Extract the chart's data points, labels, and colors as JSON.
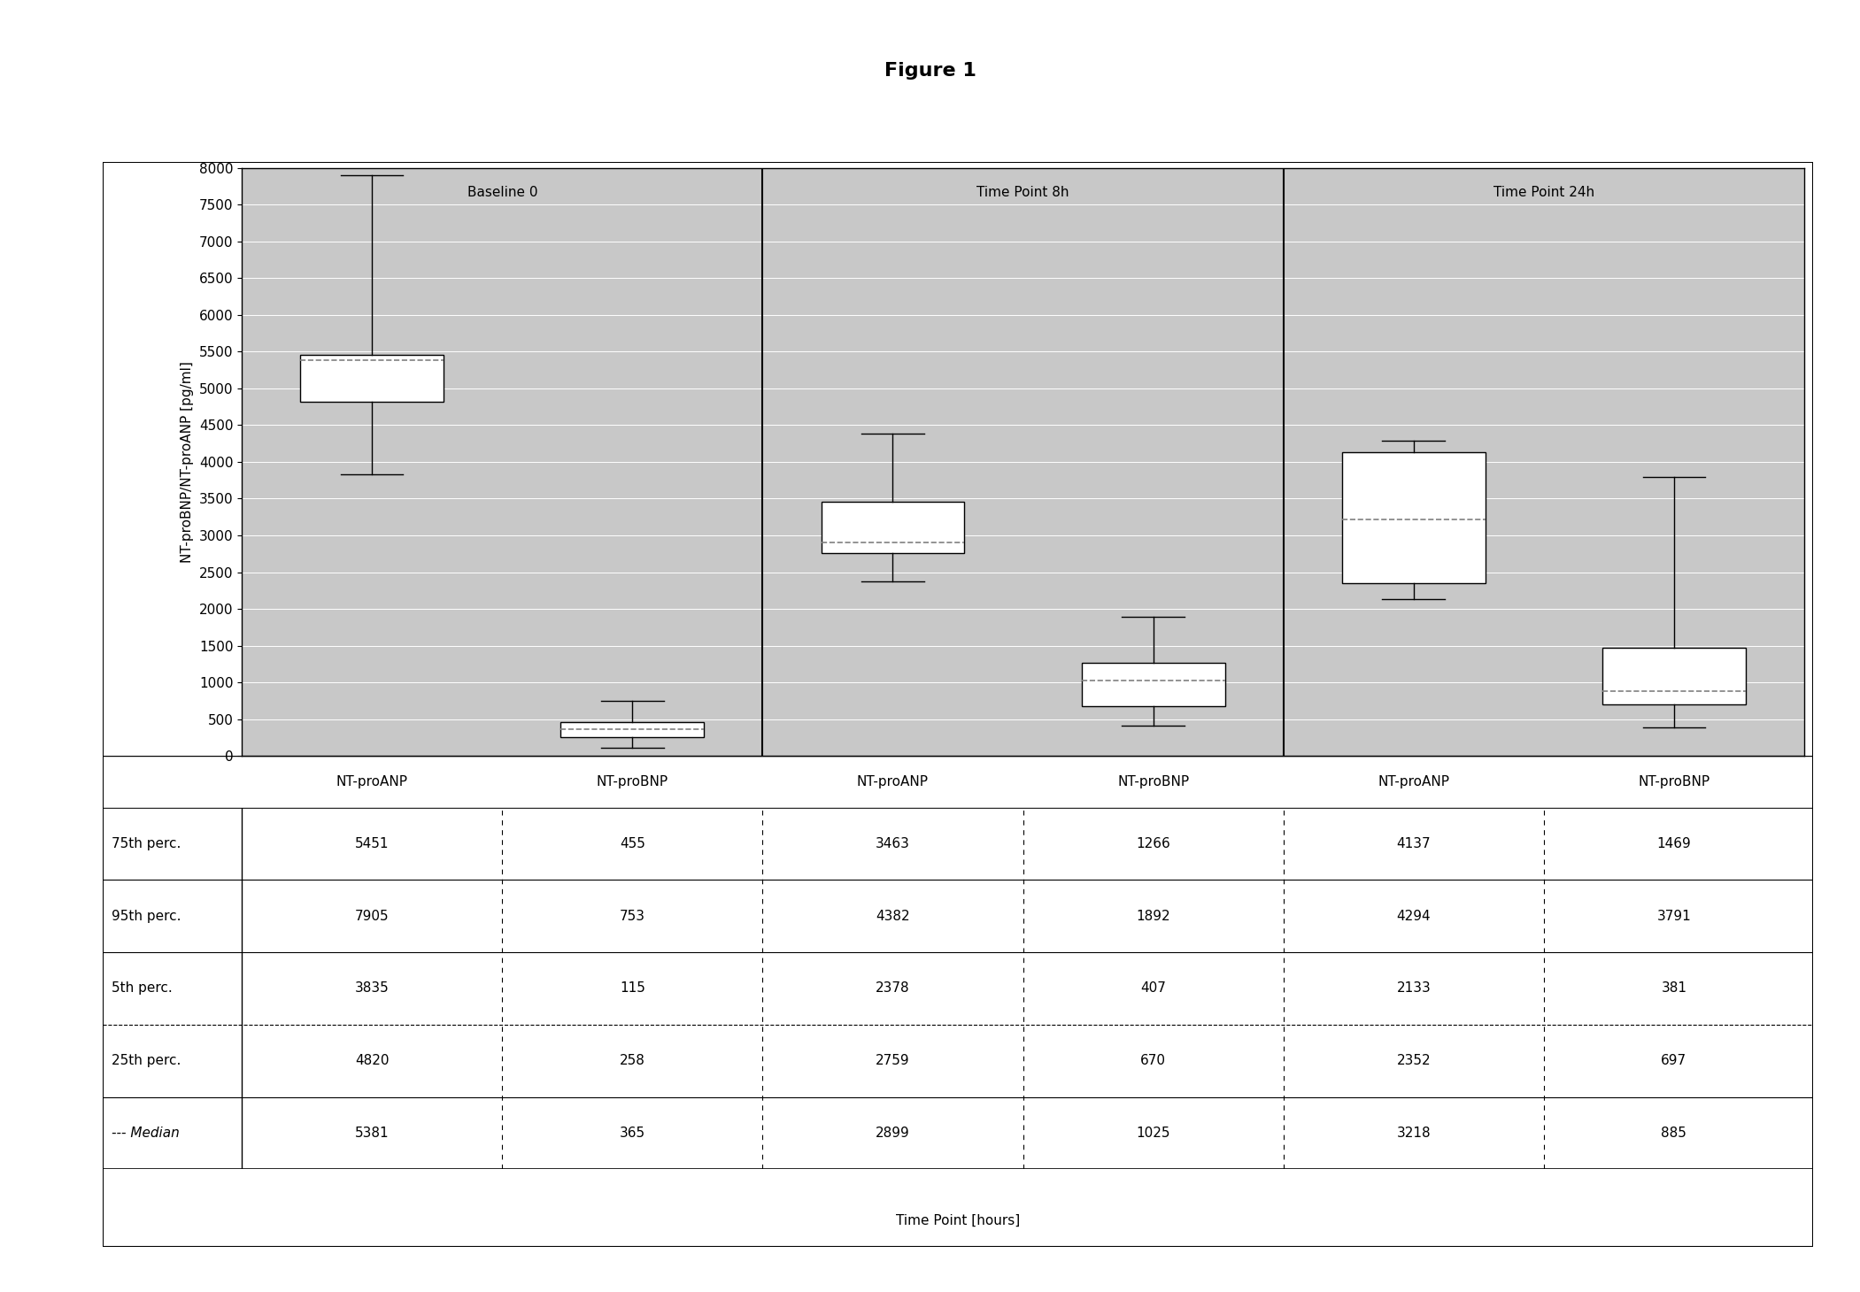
{
  "title": "Figure 1",
  "ylabel": "NT-proBNP/NT-proANP [pg/ml]",
  "xlabel": "Time Point [hours]",
  "ylim": [
    0,
    8000
  ],
  "yticks": [
    0,
    500,
    1000,
    1500,
    2000,
    2500,
    3000,
    3500,
    4000,
    4500,
    5000,
    5500,
    6000,
    6500,
    7000,
    7500,
    8000
  ],
  "group_labels": [
    "Baseline 0",
    "Time Point 8h",
    "Time Point 24h"
  ],
  "box_labels": [
    "NT-proANP",
    "NT-proBNP",
    "NT-proANP",
    "NT-proBNP",
    "NT-proANP",
    "NT-proBNP"
  ],
  "boxes": [
    {
      "q1": 4820,
      "median": 5381,
      "q3": 5451,
      "whisker_low": 3835,
      "whisker_high": 7905
    },
    {
      "q1": 258,
      "median": 365,
      "q3": 455,
      "whisker_low": 115,
      "whisker_high": 753
    },
    {
      "q1": 2759,
      "median": 2899,
      "q3": 3463,
      "whisker_low": 2378,
      "whisker_high": 4382
    },
    {
      "q1": 670,
      "median": 1025,
      "q3": 1266,
      "whisker_low": 407,
      "whisker_high": 1892
    },
    {
      "q1": 2352,
      "median": 3218,
      "q3": 4137,
      "whisker_low": 2133,
      "whisker_high": 4294
    },
    {
      "q1": 697,
      "median": 885,
      "q3": 1469,
      "whisker_low": 381,
      "whisker_high": 3791
    }
  ],
  "table_rows": [
    {
      "label": "75th perc.",
      "values": [
        5451,
        455,
        3463,
        1266,
        4137,
        1469
      ],
      "line_style": "solid"
    },
    {
      "label": "95th perc.",
      "values": [
        7905,
        753,
        4382,
        1892,
        4294,
        3791
      ],
      "line_style": "solid"
    },
    {
      "label": "5th perc.",
      "values": [
        3835,
        115,
        2378,
        407,
        2133,
        381
      ],
      "line_style": "dashed"
    },
    {
      "label": "25th perc.",
      "values": [
        4820,
        258,
        2759,
        670,
        2352,
        697
      ],
      "line_style": "solid"
    },
    {
      "label": "Median",
      "values": [
        5381,
        365,
        2899,
        1025,
        3218,
        885
      ],
      "line_style": "solid"
    }
  ],
  "box_color": "#ffffff",
  "box_edge_color": "#000000",
  "plot_bg_color": "#c8c8c8",
  "fig_bg_color": "#ffffff",
  "grid_color": "#ffffff",
  "divider_color": "#000000",
  "whisker_color": "#000000",
  "median_line_color": "#808080",
  "font_family": "Times New Roman",
  "title_fontsize": 16,
  "label_fontsize": 11,
  "tick_fontsize": 11,
  "table_fontsize": 11
}
